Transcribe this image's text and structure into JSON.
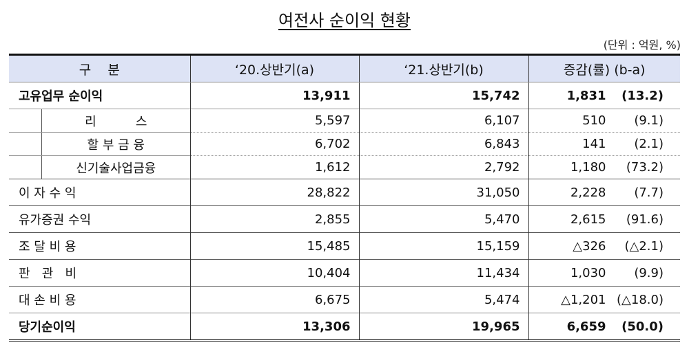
{
  "title": "여전사 순이익 현황",
  "unit": "(단위 : 억원, %)",
  "headers": [
    "구    분",
    "‘20.상반기(a)",
    "‘21.상반기(b)",
    "증감(률) (b-a)"
  ],
  "rows": [
    {
      "label": "고유업무 순이익",
      "a": "13,911",
      "b": "15,742",
      "diff": "1,831",
      "rate": "(13.2)",
      "type": "main"
    },
    {
      "label": "리          스",
      "a": "5,597",
      "b": "6,107",
      "diff": "510",
      "rate": "(9.1)",
      "type": "sub"
    },
    {
      "label": "할 부 금 융",
      "a": "6,702",
      "b": "6,843",
      "diff": "141",
      "rate": "(2.1)",
      "type": "sub"
    },
    {
      "label": "신기술사업금융",
      "a": "1,612",
      "b": "2,792",
      "diff": "1,180",
      "rate": "(73.2)",
      "type": "sub"
    },
    {
      "label": "이 자 수 익",
      "a": "28,822",
      "b": "31,050",
      "diff": "2,228",
      "rate": "(7.7)",
      "type": "main"
    },
    {
      "label": "유가증권 수익",
      "a": "2,855",
      "b": "5,470",
      "diff": "2,615",
      "rate": "(91.6)",
      "type": "main"
    },
    {
      "label": "조 달 비 용",
      "a": "15,485",
      "b": "15,159",
      "diff": "△326",
      "rate": "(△2.1)",
      "type": "main"
    },
    {
      "label": "판   관   비",
      "a": "10,404",
      "b": "11,434",
      "diff": "1,030",
      "rate": "(9.9)",
      "type": "main"
    },
    {
      "label": "대 손 비 용",
      "a": "6,675",
      "b": "5,474",
      "diff": "△1,201",
      "rate": "(△18.0)",
      "type": "main"
    },
    {
      "label": "당기순이익",
      "a": "13,306",
      "b": "19,965",
      "diff": "6,659",
      "rate": "(50.0)",
      "type": "total"
    }
  ]
}
